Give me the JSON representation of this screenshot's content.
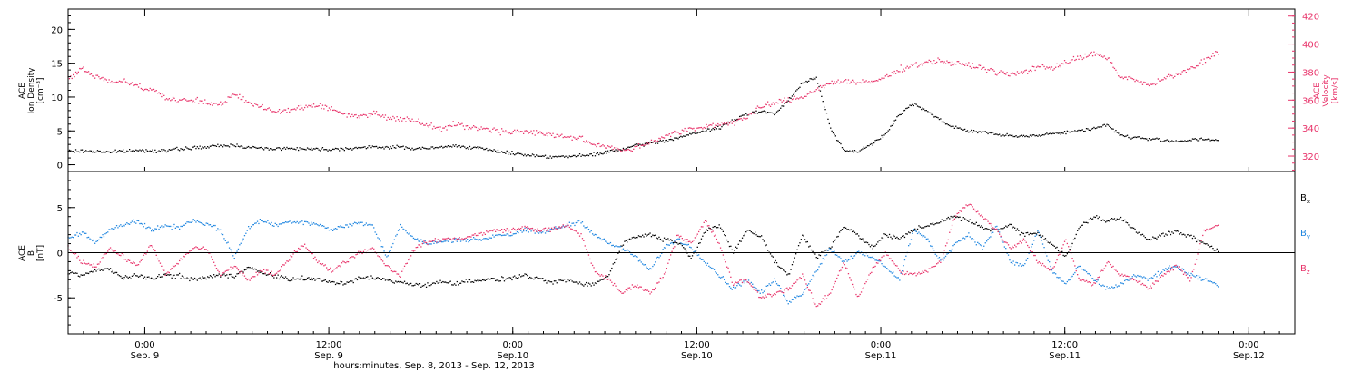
{
  "chart_data": [
    {
      "type": "scatter",
      "panel": "top",
      "x_axis": {
        "range": [
          "2013-09-08 19:00",
          "2013-09-12 03:00"
        ],
        "ticks": [
          {
            "t": "2013-09-09 00:00",
            "top": "0:00",
            "bottom": "Sep. 9"
          },
          {
            "t": "2013-09-09 12:00",
            "top": "12:00",
            "bottom": "Sep. 9"
          },
          {
            "t": "2013-09-10 00:00",
            "top": "0:00",
            "bottom": "Sep.10"
          },
          {
            "t": "2013-09-10 12:00",
            "top": "12:00",
            "bottom": "Sep.10"
          },
          {
            "t": "2013-09-11 00:00",
            "top": "0:00",
            "bottom": "Sep.11"
          },
          {
            "t": "2013-09-11 12:00",
            "top": "12:00",
            "bottom": "Sep.11"
          },
          {
            "t": "2013-09-12 00:00",
            "top": "0:00",
            "bottom": "Sep.12"
          }
        ],
        "title": "hours:minutes, Sep.  8, 2013 - Sep. 12, 2013"
      },
      "left_axis": {
        "label_lines": [
          "ACE",
          "Ion Density",
          "[cm⁻³]"
        ],
        "ylim": [
          -1,
          23
        ],
        "tick_labels": [
          "0",
          "5",
          "10",
          "15",
          "20"
        ]
      },
      "right_axis": {
        "label_lines": [
          "ACE",
          "Velocity",
          "[km/s]"
        ],
        "ylim": [
          309,
          425
        ],
        "tick_labels": [
          "320",
          "340",
          "360",
          "380",
          "400",
          "420"
        ],
        "color": "#e8336a"
      },
      "series": [
        {
          "axis": "left",
          "color": "#000000",
          "t_start": "2013-09-08 19:00",
          "t_end": "2013-09-11 22:00",
          "values": [
            2.0,
            2.0,
            2.0,
            1.9,
            2.0,
            2.1,
            2.1,
            2.1,
            2.3,
            2.5,
            2.6,
            2.8,
            2.9,
            2.6,
            2.4,
            2.4,
            2.4,
            2.4,
            2.3,
            2.3,
            2.4,
            2.5,
            2.6,
            2.6,
            2.6,
            2.4,
            2.4,
            2.6,
            2.8,
            2.6,
            2.3,
            2.0,
            1.7,
            1.5,
            1.3,
            1.2,
            1.2,
            1.3,
            1.5,
            1.9,
            2.3,
            2.8,
            3.2,
            3.5,
            4.0,
            4.5,
            5.0,
            5.5,
            6.5,
            7.5,
            8.0,
            7.5,
            9.5,
            12.0,
            13.0,
            5.5,
            2.0,
            2.0,
            3.0,
            4.5,
            7.5,
            9.0,
            8.0,
            6.5,
            5.5,
            5.0,
            4.8,
            4.5,
            4.2,
            4.2,
            4.4,
            4.6,
            4.8,
            5.0,
            5.4,
            5.9,
            4.3,
            4.0,
            3.8,
            3.6,
            3.5,
            3.6,
            3.8,
            3.5
          ]
        },
        {
          "axis": "right",
          "color": "#e8336a",
          "t_start": "2013-09-08 19:00",
          "t_end": "2013-09-11 22:00",
          "values": [
            375,
            382,
            377,
            373,
            374,
            370,
            368,
            362,
            359,
            360,
            358,
            357,
            364,
            358,
            355,
            352,
            353,
            355,
            357,
            353,
            350,
            348,
            351,
            348,
            346,
            346,
            342,
            340,
            343,
            340,
            340,
            338,
            337,
            338,
            336,
            335,
            334,
            332,
            328,
            327,
            324,
            326,
            330,
            334,
            337,
            339,
            341,
            343,
            344,
            348,
            355,
            358,
            360,
            362,
            368,
            372,
            374,
            372,
            373,
            376,
            382,
            385,
            387,
            388,
            386,
            385,
            383,
            380,
            378,
            380,
            384,
            383,
            387,
            390,
            393,
            390,
            376,
            375,
            370,
            375,
            378,
            382,
            388,
            395
          ]
        }
      ]
    },
    {
      "type": "scatter",
      "panel": "bottom",
      "left_axis": {
        "label_lines": [
          "ACE",
          "B",
          "[nT]"
        ],
        "ylim": [
          -9,
          9
        ],
        "tick_labels": [
          "-5",
          "0",
          "5"
        ],
        "zero_line": true
      },
      "legend": {
        "placement": "right",
        "entries": [
          {
            "symbol": "B",
            "sub": "x",
            "color": "#000000"
          },
          {
            "symbol": "B",
            "sub": "y",
            "color": "#1f86e0"
          },
          {
            "symbol": "B",
            "sub": "z",
            "color": "#e8336a"
          }
        ]
      },
      "series": [
        {
          "name": "Bx",
          "color": "#000000",
          "t_start": "2013-09-08 19:00",
          "t_end": "2013-09-11 22:00",
          "values": [
            -2.2,
            -2.5,
            -2.0,
            -1.8,
            -2.8,
            -2.6,
            -2.8,
            -2.5,
            -2.6,
            -3.0,
            -2.7,
            -2.5,
            -2.6,
            -1.5,
            -2.3,
            -2.6,
            -3.0,
            -2.8,
            -3.0,
            -3.2,
            -3.5,
            -2.8,
            -2.8,
            -3.0,
            -3.3,
            -3.5,
            -3.6,
            -3.2,
            -3.4,
            -3.1,
            -3.0,
            -3.0,
            -2.8,
            -2.5,
            -3.0,
            -3.3,
            -3.0,
            -3.5,
            -3.5,
            -2.5,
            1.0,
            1.8,
            2.0,
            1.5,
            1.2,
            -0.5,
            2.5,
            3.0,
            0.0,
            2.5,
            1.8,
            -1.0,
            -2.5,
            2.0,
            -0.5,
            0.5,
            3.0,
            2.0,
            0.5,
            2.0,
            1.5,
            2.5,
            3.0,
            3.5,
            4.0,
            3.5,
            2.8,
            2.5,
            3.0,
            2.0,
            2.2,
            1.0,
            -0.5,
            2.8,
            4.0,
            3.5,
            3.8,
            2.5,
            1.5,
            2.0,
            2.3,
            1.8,
            1.0,
            0.3
          ]
        },
        {
          "name": "By",
          "color": "#1f86e0",
          "t_start": "2013-09-08 19:00",
          "t_end": "2013-09-11 22:00",
          "values": [
            1.5,
            2.3,
            1.0,
            2.6,
            3.2,
            3.5,
            2.5,
            3.0,
            2.8,
            3.6,
            3.2,
            2.5,
            -0.5,
            2.8,
            3.6,
            3.0,
            3.5,
            3.4,
            3.2,
            2.5,
            3.0,
            3.3,
            3.0,
            -0.5,
            3.0,
            1.5,
            1.0,
            1.2,
            1.5,
            1.4,
            1.5,
            2.0,
            2.0,
            2.5,
            2.2,
            2.6,
            3.0,
            3.5,
            2.0,
            1.0,
            0.5,
            -0.5,
            -2.0,
            0.5,
            1.5,
            0.5,
            -1.0,
            -2.5,
            -4.0,
            -3.0,
            -4.5,
            -3.0,
            -5.5,
            -4.5,
            -2.0,
            0.5,
            -1.0,
            0.0,
            -0.5,
            -1.5,
            -3.0,
            2.5,
            1.5,
            -1.0,
            1.0,
            2.0,
            0.5,
            3.0,
            -1.0,
            -1.5,
            2.5,
            -2.0,
            -3.5,
            -1.5,
            -3.0,
            -4.0,
            -3.5,
            -2.5,
            -3.0,
            -2.0,
            -1.5,
            -2.5,
            -3.0,
            -3.5
          ]
        },
        {
          "name": "Bz",
          "color": "#e8336a",
          "t_start": "2013-09-08 19:00",
          "t_end": "2013-09-11 22:00",
          "values": [
            0.5,
            -1.0,
            -1.5,
            0.5,
            -0.5,
            -1.5,
            1.0,
            -2.5,
            -1.0,
            0.5,
            0.5,
            -2.5,
            -1.5,
            -3.0,
            -2.0,
            -2.5,
            -0.5,
            1.0,
            -1.0,
            -2.0,
            -1.0,
            0.0,
            0.5,
            -1.5,
            -2.5,
            0.5,
            1.2,
            1.5,
            1.5,
            1.8,
            2.2,
            2.5,
            2.5,
            2.8,
            2.5,
            2.6,
            3.0,
            2.0,
            -2.0,
            -3.0,
            -4.5,
            -3.5,
            -4.5,
            -2.5,
            2.0,
            1.0,
            3.5,
            1.0,
            -3.5,
            -3.0,
            -5.0,
            -4.5,
            -4.0,
            -2.5,
            -6.0,
            -4.5,
            -1.0,
            -5.0,
            -2.0,
            0.0,
            -2.0,
            -2.5,
            -2.0,
            -1.0,
            4.0,
            5.5,
            4.0,
            2.5,
            0.5,
            1.5,
            -1.0,
            -2.0,
            1.5,
            -3.0,
            -3.5,
            -1.0,
            -2.5,
            -3.0,
            -4.0,
            -2.5,
            -1.5,
            -3.0,
            2.5,
            3.0
          ]
        }
      ]
    }
  ]
}
